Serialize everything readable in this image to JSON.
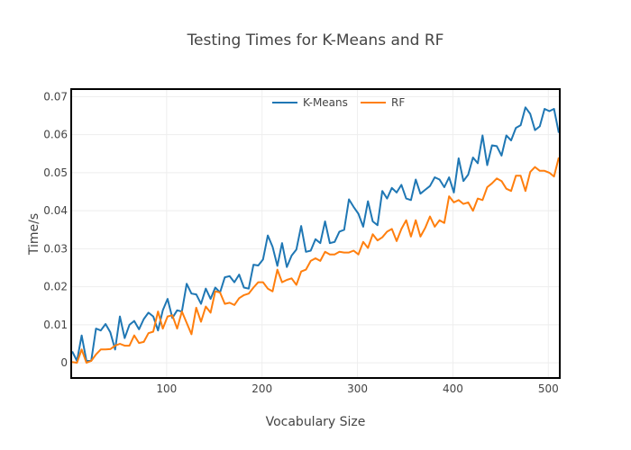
{
  "chart_data": {
    "type": "line",
    "title": "Testing Times for K-Means and RF",
    "xlabel": "Vocabulary Size",
    "ylabel": "Time/s",
    "xlim": [
      0,
      512
    ],
    "ylim": [
      -0.004,
      0.072
    ],
    "xticks": [
      100,
      200,
      300,
      400,
      500
    ],
    "yticks": [
      0,
      0.01,
      0.02,
      0.03,
      0.04,
      0.05,
      0.06,
      0.07
    ],
    "ytick_labels": [
      "0",
      "0.01",
      "0.02",
      "0.03",
      "0.04",
      "0.05",
      "0.06",
      "0.07"
    ],
    "grid": true,
    "legend_position": "top-center",
    "series": [
      {
        "name": "K-Means",
        "color": "#1f77b4",
        "points": [
          [
            1,
            0.003
          ],
          [
            6,
            0.0005
          ],
          [
            11,
            0.0072
          ],
          [
            16,
            0.0005
          ],
          [
            21,
            0.0005
          ],
          [
            26,
            0.009
          ],
          [
            31,
            0.0085
          ],
          [
            36,
            0.0102
          ],
          [
            41,
            0.008
          ],
          [
            46,
            0.0035
          ],
          [
            51,
            0.0122
          ],
          [
            56,
            0.0065
          ],
          [
            61,
            0.01
          ],
          [
            66,
            0.011
          ],
          [
            71,
            0.0088
          ],
          [
            76,
            0.0115
          ],
          [
            81,
            0.0132
          ],
          [
            86,
            0.0122
          ],
          [
            91,
            0.0085
          ],
          [
            96,
            0.0138
          ],
          [
            101,
            0.0168
          ],
          [
            106,
            0.0118
          ],
          [
            111,
            0.0138
          ],
          [
            116,
            0.0135
          ],
          [
            121,
            0.0208
          ],
          [
            126,
            0.0182
          ],
          [
            131,
            0.018
          ],
          [
            136,
            0.0155
          ],
          [
            141,
            0.0195
          ],
          [
            146,
            0.0168
          ],
          [
            151,
            0.0198
          ],
          [
            156,
            0.0185
          ],
          [
            161,
            0.0225
          ],
          [
            166,
            0.0228
          ],
          [
            171,
            0.0212
          ],
          [
            176,
            0.0232
          ],
          [
            181,
            0.0198
          ],
          [
            186,
            0.0195
          ],
          [
            191,
            0.0258
          ],
          [
            196,
            0.0256
          ],
          [
            201,
            0.0272
          ],
          [
            206,
            0.0335
          ],
          [
            211,
            0.0305
          ],
          [
            216,
            0.0255
          ],
          [
            221,
            0.0315
          ],
          [
            226,
            0.0252
          ],
          [
            231,
            0.0282
          ],
          [
            236,
            0.0298
          ],
          [
            241,
            0.036
          ],
          [
            246,
            0.0292
          ],
          [
            251,
            0.0295
          ],
          [
            256,
            0.0325
          ],
          [
            261,
            0.0315
          ],
          [
            266,
            0.0372
          ],
          [
            271,
            0.0315
          ],
          [
            276,
            0.0318
          ],
          [
            281,
            0.0345
          ],
          [
            286,
            0.035
          ],
          [
            291,
            0.043
          ],
          [
            296,
            0.041
          ],
          [
            301,
            0.0392
          ],
          [
            306,
            0.0358
          ],
          [
            311,
            0.0425
          ],
          [
            316,
            0.0372
          ],
          [
            321,
            0.0362
          ],
          [
            326,
            0.0452
          ],
          [
            331,
            0.0432
          ],
          [
            336,
            0.046
          ],
          [
            341,
            0.0448
          ],
          [
            346,
            0.0468
          ],
          [
            351,
            0.0432
          ],
          [
            356,
            0.0428
          ],
          [
            361,
            0.0482
          ],
          [
            366,
            0.0445
          ],
          [
            371,
            0.0455
          ],
          [
            376,
            0.0465
          ],
          [
            381,
            0.0488
          ],
          [
            386,
            0.0482
          ],
          [
            391,
            0.0462
          ],
          [
            396,
            0.0488
          ],
          [
            401,
            0.0448
          ],
          [
            406,
            0.0538
          ],
          [
            411,
            0.0478
          ],
          [
            416,
            0.0495
          ],
          [
            421,
            0.054
          ],
          [
            426,
            0.0525
          ],
          [
            431,
            0.0598
          ],
          [
            436,
            0.052
          ],
          [
            441,
            0.0572
          ],
          [
            446,
            0.057
          ],
          [
            451,
            0.0545
          ],
          [
            456,
            0.0598
          ],
          [
            461,
            0.0585
          ],
          [
            466,
            0.0618
          ],
          [
            471,
            0.0625
          ],
          [
            476,
            0.0672
          ],
          [
            481,
            0.0655
          ],
          [
            486,
            0.0612
          ],
          [
            491,
            0.0622
          ],
          [
            496,
            0.0668
          ],
          [
            501,
            0.0662
          ],
          [
            506,
            0.0668
          ],
          [
            511,
            0.0605
          ]
        ]
      },
      {
        "name": "RF",
        "color": "#ff7f0e",
        "points": [
          [
            1,
            0.0002
          ],
          [
            6,
            0.0
          ],
          [
            11,
            0.0035
          ],
          [
            16,
            0.0
          ],
          [
            21,
            0.0005
          ],
          [
            26,
            0.0022
          ],
          [
            31,
            0.0035
          ],
          [
            36,
            0.0035
          ],
          [
            41,
            0.0036
          ],
          [
            46,
            0.0045
          ],
          [
            51,
            0.005
          ],
          [
            56,
            0.0045
          ],
          [
            61,
            0.0045
          ],
          [
            66,
            0.0072
          ],
          [
            71,
            0.0052
          ],
          [
            76,
            0.0055
          ],
          [
            81,
            0.0078
          ],
          [
            86,
            0.0082
          ],
          [
            91,
            0.0135
          ],
          [
            96,
            0.009
          ],
          [
            101,
            0.0122
          ],
          [
            106,
            0.0125
          ],
          [
            111,
            0.009
          ],
          [
            116,
            0.0135
          ],
          [
            121,
            0.0105
          ],
          [
            126,
            0.0075
          ],
          [
            131,
            0.0145
          ],
          [
            136,
            0.0108
          ],
          [
            141,
            0.0148
          ],
          [
            146,
            0.0132
          ],
          [
            151,
            0.0188
          ],
          [
            156,
            0.0185
          ],
          [
            161,
            0.0155
          ],
          [
            166,
            0.0158
          ],
          [
            171,
            0.0152
          ],
          [
            176,
            0.017
          ],
          [
            181,
            0.0178
          ],
          [
            186,
            0.0182
          ],
          [
            191,
            0.0198
          ],
          [
            196,
            0.0212
          ],
          [
            201,
            0.0212
          ],
          [
            206,
            0.0195
          ],
          [
            211,
            0.0188
          ],
          [
            216,
            0.0245
          ],
          [
            221,
            0.0212
          ],
          [
            226,
            0.0218
          ],
          [
            231,
            0.0222
          ],
          [
            236,
            0.0205
          ],
          [
            241,
            0.024
          ],
          [
            246,
            0.0245
          ],
          [
            251,
            0.0268
          ],
          [
            256,
            0.0275
          ],
          [
            261,
            0.0268
          ],
          [
            266,
            0.0292
          ],
          [
            271,
            0.0285
          ],
          [
            276,
            0.0285
          ],
          [
            281,
            0.0292
          ],
          [
            286,
            0.029
          ],
          [
            291,
            0.029
          ],
          [
            296,
            0.0295
          ],
          [
            301,
            0.0285
          ],
          [
            306,
            0.0318
          ],
          [
            311,
            0.0302
          ],
          [
            316,
            0.0338
          ],
          [
            321,
            0.0322
          ],
          [
            326,
            0.033
          ],
          [
            331,
            0.0345
          ],
          [
            336,
            0.0352
          ],
          [
            341,
            0.032
          ],
          [
            346,
            0.0352
          ],
          [
            351,
            0.0375
          ],
          [
            356,
            0.0332
          ],
          [
            361,
            0.0375
          ],
          [
            366,
            0.0332
          ],
          [
            371,
            0.0355
          ],
          [
            376,
            0.0385
          ],
          [
            381,
            0.0358
          ],
          [
            386,
            0.0375
          ],
          [
            391,
            0.0368
          ],
          [
            396,
            0.0438
          ],
          [
            401,
            0.0422
          ],
          [
            406,
            0.0428
          ],
          [
            411,
            0.0418
          ],
          [
            416,
            0.0422
          ],
          [
            421,
            0.04
          ],
          [
            426,
            0.0432
          ],
          [
            431,
            0.0428
          ],
          [
            436,
            0.0462
          ],
          [
            441,
            0.0472
          ],
          [
            446,
            0.0485
          ],
          [
            451,
            0.0478
          ],
          [
            456,
            0.0458
          ],
          [
            461,
            0.0452
          ],
          [
            466,
            0.0492
          ],
          [
            471,
            0.0492
          ],
          [
            476,
            0.0452
          ],
          [
            481,
            0.0502
          ],
          [
            486,
            0.0515
          ],
          [
            491,
            0.0505
          ],
          [
            496,
            0.0505
          ],
          [
            501,
            0.05
          ],
          [
            506,
            0.049
          ],
          [
            511,
            0.054
          ]
        ]
      }
    ]
  }
}
